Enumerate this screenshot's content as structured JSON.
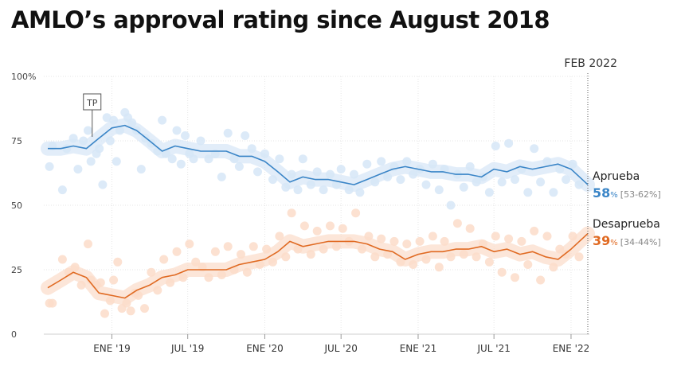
{
  "title": "AMLO’s approval rating since August 2018",
  "chart_data": {
    "type": "line",
    "title": "AMLO’s approval rating since August 2018",
    "y_ticks": [
      "0",
      "25",
      "50",
      "75",
      "100%"
    ],
    "ylim": [
      0,
      100
    ],
    "x_ticks": [
      {
        "label": "ENE '19",
        "date": "2019-01-01"
      },
      {
        "label": "JUL '19",
        "date": "2019-07-01"
      },
      {
        "label": "ENE '20",
        "date": "2020-01-01"
      },
      {
        "label": "JUL '20",
        "date": "2020-07-01"
      },
      {
        "label": "ENE '21",
        "date": "2021-01-01"
      },
      {
        "label": "JUL '21",
        "date": "2021-07-01"
      },
      {
        "label": "ENE '22",
        "date": "2022-01-01"
      }
    ],
    "x_range": [
      "2018-08-01",
      "2022-02-10"
    ],
    "marker": {
      "label": "FEB 2022",
      "date": "2022-02-10"
    },
    "annotation": {
      "label": "TP",
      "date": "2018-11-15"
    },
    "grid": true,
    "series": [
      {
        "name": "Aprueba",
        "color": "#3a85c7",
        "point_color": "#d6e6f7",
        "latest": "58",
        "latest_range": "[53-62%]",
        "values": [
          [
            "2018-08-01",
            72
          ],
          [
            "2018-09-01",
            72
          ],
          [
            "2018-10-01",
            73
          ],
          [
            "2018-11-01",
            72
          ],
          [
            "2018-12-01",
            76
          ],
          [
            "2019-01-01",
            80
          ],
          [
            "2019-02-01",
            81
          ],
          [
            "2019-03-01",
            79
          ],
          [
            "2019-04-01",
            75
          ],
          [
            "2019-05-01",
            71
          ],
          [
            "2019-06-01",
            73
          ],
          [
            "2019-07-01",
            72
          ],
          [
            "2019-08-01",
            71
          ],
          [
            "2019-09-01",
            71
          ],
          [
            "2019-10-01",
            71
          ],
          [
            "2019-11-01",
            69
          ],
          [
            "2019-12-01",
            69
          ],
          [
            "2020-01-01",
            67
          ],
          [
            "2020-02-01",
            63
          ],
          [
            "2020-03-01",
            59
          ],
          [
            "2020-04-01",
            61
          ],
          [
            "2020-05-01",
            60
          ],
          [
            "2020-06-01",
            60
          ],
          [
            "2020-07-01",
            59
          ],
          [
            "2020-08-01",
            58
          ],
          [
            "2020-09-01",
            60
          ],
          [
            "2020-10-01",
            62
          ],
          [
            "2020-11-01",
            64
          ],
          [
            "2020-12-01",
            65
          ],
          [
            "2021-01-01",
            64
          ],
          [
            "2021-02-01",
            63
          ],
          [
            "2021-03-01",
            63
          ],
          [
            "2021-04-01",
            62
          ],
          [
            "2021-05-01",
            62
          ],
          [
            "2021-06-01",
            61
          ],
          [
            "2021-07-01",
            64
          ],
          [
            "2021-08-01",
            63
          ],
          [
            "2021-09-01",
            65
          ],
          [
            "2021-10-01",
            64
          ],
          [
            "2021-11-01",
            65
          ],
          [
            "2021-12-01",
            66
          ],
          [
            "2022-01-01",
            64
          ],
          [
            "2022-02-10",
            58
          ]
        ],
        "points": [
          [
            "2018-08-05",
            65
          ],
          [
            "2018-08-12",
            73
          ],
          [
            "2018-09-05",
            56
          ],
          [
            "2018-09-15",
            72
          ],
          [
            "2018-10-01",
            76
          ],
          [
            "2018-10-12",
            64
          ],
          [
            "2018-10-25",
            75
          ],
          [
            "2018-11-05",
            79
          ],
          [
            "2018-11-12",
            67
          ],
          [
            "2018-11-25",
            70
          ],
          [
            "2018-12-02",
            72
          ],
          [
            "2018-12-10",
            58
          ],
          [
            "2018-12-20",
            84
          ],
          [
            "2018-12-28",
            75
          ],
          [
            "2019-01-05",
            83
          ],
          [
            "2019-01-12",
            67
          ],
          [
            "2019-01-20",
            79
          ],
          [
            "2019-02-01",
            86
          ],
          [
            "2019-02-08",
            84
          ],
          [
            "2019-02-18",
            82
          ],
          [
            "2019-03-01",
            79
          ],
          [
            "2019-03-12",
            64
          ],
          [
            "2019-03-22",
            76
          ],
          [
            "2019-04-05",
            74
          ],
          [
            "2019-04-20",
            71
          ],
          [
            "2019-05-01",
            83
          ],
          [
            "2019-05-10",
            70
          ],
          [
            "2019-05-25",
            68
          ],
          [
            "2019-06-05",
            79
          ],
          [
            "2019-06-15",
            66
          ],
          [
            "2019-06-25",
            77
          ],
          [
            "2019-07-05",
            70
          ],
          [
            "2019-07-15",
            68
          ],
          [
            "2019-08-01",
            75
          ],
          [
            "2019-08-20",
            68
          ],
          [
            "2019-09-05",
            70
          ],
          [
            "2019-09-20",
            61
          ],
          [
            "2019-10-05",
            78
          ],
          [
            "2019-10-20",
            68
          ],
          [
            "2019-11-01",
            65
          ],
          [
            "2019-11-15",
            77
          ],
          [
            "2019-12-01",
            72
          ],
          [
            "2019-12-15",
            63
          ],
          [
            "2020-01-01",
            70
          ],
          [
            "2020-01-20",
            60
          ],
          [
            "2020-02-05",
            68
          ],
          [
            "2020-02-20",
            57
          ],
          [
            "2020-03-05",
            62
          ],
          [
            "2020-03-20",
            56
          ],
          [
            "2020-04-01",
            68
          ],
          [
            "2020-04-20",
            58
          ],
          [
            "2020-05-05",
            63
          ],
          [
            "2020-05-20",
            56
          ],
          [
            "2020-06-05",
            62
          ],
          [
            "2020-06-20",
            58
          ],
          [
            "2020-07-01",
            64
          ],
          [
            "2020-07-20",
            56
          ],
          [
            "2020-08-01",
            62
          ],
          [
            "2020-08-15",
            55
          ],
          [
            "2020-09-01",
            66
          ],
          [
            "2020-09-20",
            59
          ],
          [
            "2020-10-05",
            67
          ],
          [
            "2020-10-20",
            61
          ],
          [
            "2020-11-05",
            65
          ],
          [
            "2020-11-20",
            60
          ],
          [
            "2020-12-05",
            67
          ],
          [
            "2020-12-20",
            62
          ],
          [
            "2021-01-05",
            64
          ],
          [
            "2021-01-20",
            58
          ],
          [
            "2021-02-05",
            66
          ],
          [
            "2021-02-20",
            56
          ],
          [
            "2021-03-05",
            64
          ],
          [
            "2021-03-20",
            50
          ],
          [
            "2021-04-05",
            62
          ],
          [
            "2021-04-20",
            57
          ],
          [
            "2021-05-05",
            65
          ],
          [
            "2021-05-20",
            59
          ],
          [
            "2021-06-05",
            61
          ],
          [
            "2021-06-20",
            55
          ],
          [
            "2021-07-05",
            73
          ],
          [
            "2021-07-20",
            59
          ],
          [
            "2021-08-05",
            74
          ],
          [
            "2021-08-20",
            60
          ],
          [
            "2021-09-05",
            64
          ],
          [
            "2021-09-20",
            55
          ],
          [
            "2021-10-05",
            72
          ],
          [
            "2021-10-20",
            59
          ],
          [
            "2021-11-05",
            67
          ],
          [
            "2021-11-20",
            55
          ],
          [
            "2021-12-05",
            64
          ],
          [
            "2021-12-20",
            60
          ],
          [
            "2022-01-05",
            66
          ],
          [
            "2022-01-20",
            58
          ]
        ]
      },
      {
        "name": "Desaprueba",
        "color": "#e06a22",
        "point_color": "#fbdcc9",
        "latest": "39",
        "latest_range": "[34-44%]",
        "values": [
          [
            "2018-08-01",
            18
          ],
          [
            "2018-09-01",
            21
          ],
          [
            "2018-10-01",
            24
          ],
          [
            "2018-11-01",
            22
          ],
          [
            "2018-12-01",
            16
          ],
          [
            "2019-01-01",
            15
          ],
          [
            "2019-02-01",
            14
          ],
          [
            "2019-03-01",
            17
          ],
          [
            "2019-04-01",
            19
          ],
          [
            "2019-05-01",
            22
          ],
          [
            "2019-06-01",
            23
          ],
          [
            "2019-07-01",
            25
          ],
          [
            "2019-08-01",
            25
          ],
          [
            "2019-09-01",
            25
          ],
          [
            "2019-10-01",
            25
          ],
          [
            "2019-11-01",
            27
          ],
          [
            "2019-12-01",
            28
          ],
          [
            "2020-01-01",
            29
          ],
          [
            "2020-02-01",
            32
          ],
          [
            "2020-03-01",
            36
          ],
          [
            "2020-04-01",
            34
          ],
          [
            "2020-05-01",
            35
          ],
          [
            "2020-06-01",
            36
          ],
          [
            "2020-07-01",
            36
          ],
          [
            "2020-08-01",
            36
          ],
          [
            "2020-09-01",
            35
          ],
          [
            "2020-10-01",
            33
          ],
          [
            "2020-11-01",
            32
          ],
          [
            "2020-12-01",
            29
          ],
          [
            "2021-01-01",
            31
          ],
          [
            "2021-02-01",
            32
          ],
          [
            "2021-03-01",
            32
          ],
          [
            "2021-04-01",
            33
          ],
          [
            "2021-05-01",
            33
          ],
          [
            "2021-06-01",
            34
          ],
          [
            "2021-07-01",
            32
          ],
          [
            "2021-08-01",
            33
          ],
          [
            "2021-09-01",
            31
          ],
          [
            "2021-10-01",
            32
          ],
          [
            "2021-11-01",
            30
          ],
          [
            "2021-12-01",
            29
          ],
          [
            "2022-01-01",
            33
          ],
          [
            "2022-02-10",
            39
          ]
        ],
        "points": [
          [
            "2018-08-05",
            12
          ],
          [
            "2018-08-12",
            12
          ],
          [
            "2018-09-05",
            29
          ],
          [
            "2018-09-20",
            24
          ],
          [
            "2018-10-05",
            26
          ],
          [
            "2018-10-20",
            19
          ],
          [
            "2018-11-05",
            35
          ],
          [
            "2018-11-12",
            21
          ],
          [
            "2018-11-25",
            19
          ],
          [
            "2018-12-05",
            20
          ],
          [
            "2018-12-15",
            8
          ],
          [
            "2018-12-28",
            13
          ],
          [
            "2019-01-05",
            21
          ],
          [
            "2019-01-15",
            28
          ],
          [
            "2019-01-25",
            10
          ],
          [
            "2019-02-05",
            12
          ],
          [
            "2019-02-15",
            9
          ],
          [
            "2019-02-25",
            16
          ],
          [
            "2019-03-05",
            15
          ],
          [
            "2019-03-20",
            10
          ],
          [
            "2019-04-05",
            24
          ],
          [
            "2019-04-20",
            17
          ],
          [
            "2019-05-05",
            29
          ],
          [
            "2019-05-20",
            20
          ],
          [
            "2019-06-05",
            32
          ],
          [
            "2019-06-20",
            22
          ],
          [
            "2019-07-05",
            35
          ],
          [
            "2019-07-20",
            28
          ],
          [
            "2019-08-05",
            26
          ],
          [
            "2019-08-20",
            22
          ],
          [
            "2019-09-05",
            32
          ],
          [
            "2019-09-20",
            23
          ],
          [
            "2019-10-05",
            34
          ],
          [
            "2019-10-20",
            25
          ],
          [
            "2019-11-05",
            31
          ],
          [
            "2019-11-20",
            24
          ],
          [
            "2019-12-05",
            34
          ],
          [
            "2019-12-20",
            27
          ],
          [
            "2020-01-05",
            33
          ],
          [
            "2020-01-20",
            28
          ],
          [
            "2020-02-05",
            38
          ],
          [
            "2020-02-20",
            30
          ],
          [
            "2020-03-05",
            47
          ],
          [
            "2020-03-20",
            33
          ],
          [
            "2020-04-05",
            42
          ],
          [
            "2020-04-20",
            31
          ],
          [
            "2020-05-05",
            40
          ],
          [
            "2020-05-20",
            33
          ],
          [
            "2020-06-05",
            42
          ],
          [
            "2020-06-20",
            34
          ],
          [
            "2020-07-05",
            41
          ],
          [
            "2020-07-20",
            36
          ],
          [
            "2020-08-05",
            47
          ],
          [
            "2020-08-20",
            33
          ],
          [
            "2020-09-05",
            38
          ],
          [
            "2020-09-20",
            30
          ],
          [
            "2020-10-05",
            37
          ],
          [
            "2020-10-20",
            31
          ],
          [
            "2020-11-05",
            36
          ],
          [
            "2020-11-20",
            28
          ],
          [
            "2020-12-05",
            35
          ],
          [
            "2020-12-20",
            27
          ],
          [
            "2021-01-05",
            36
          ],
          [
            "2021-01-20",
            29
          ],
          [
            "2021-02-05",
            38
          ],
          [
            "2021-02-20",
            26
          ],
          [
            "2021-03-05",
            36
          ],
          [
            "2021-03-20",
            30
          ],
          [
            "2021-04-05",
            43
          ],
          [
            "2021-04-20",
            31
          ],
          [
            "2021-05-05",
            41
          ],
          [
            "2021-05-20",
            30
          ],
          [
            "2021-06-05",
            35
          ],
          [
            "2021-06-20",
            28
          ],
          [
            "2021-07-05",
            38
          ],
          [
            "2021-07-20",
            24
          ],
          [
            "2021-08-05",
            37
          ],
          [
            "2021-08-20",
            22
          ],
          [
            "2021-09-05",
            36
          ],
          [
            "2021-09-20",
            27
          ],
          [
            "2021-10-05",
            40
          ],
          [
            "2021-10-20",
            21
          ],
          [
            "2021-11-05",
            38
          ],
          [
            "2021-11-20",
            26
          ],
          [
            "2021-12-05",
            33
          ],
          [
            "2021-12-20",
            31
          ],
          [
            "2022-01-05",
            38
          ],
          [
            "2022-01-20",
            30
          ]
        ]
      }
    ]
  }
}
